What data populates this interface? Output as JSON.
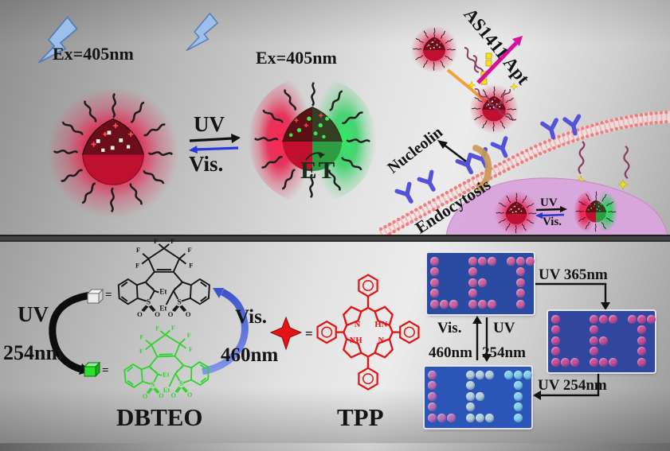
{
  "figure": {
    "top": {
      "ex_left": "Ex=405nm",
      "ex_mid": "Ex=405nm",
      "switch_uv": "UV",
      "switch_vis": "Vis.",
      "et": "ET",
      "aptamer": "AS1411 Apt",
      "nucleolin": "Nucleolin",
      "endocytosis": "Endocytosis",
      "cell_uv": "UV",
      "cell_vis": "Vis."
    },
    "bottom": {
      "uv": "UV",
      "uv_nm": "254nm",
      "vis": "Vis.",
      "vis_nm": "460nm",
      "dbteo": "DBTEO",
      "tpp": "TPP",
      "eq1": "=",
      "eq2": "=",
      "eq3": "="
    },
    "chem": {
      "F": "F",
      "S": "S",
      "O": "O",
      "Et": "Et",
      "N": "N",
      "HN": "HN",
      "NH": "NH"
    },
    "photos": {
      "to_right": "UV 365nm",
      "to_left": "UV 254nm",
      "cyc_vis": "Vis.",
      "cyc_vis_nm": "460nm",
      "cyc_uv": "UV",
      "cyc_uv_nm": "254nm",
      "word": "LET",
      "panels": [
        {
          "name": "initial",
          "bg": "#2b4aa2",
          "colors": {
            "L": "#d8639f",
            "E": "#d8639f",
            "T": "#d8639f"
          }
        },
        {
          "name": "after-uv-365",
          "bg": "#31479e",
          "colors": {
            "L": "#cf4f96",
            "E": "#cf4f96",
            "T": "#cf4f96"
          }
        },
        {
          "name": "after-uv-254",
          "bg": "#2c55b8",
          "colors": {
            "L": "#c273b4",
            "E": "#bad8e0",
            "T": "#84d8f2"
          }
        }
      ],
      "letter_patterns": {
        "L": [
          "100",
          "100",
          "100",
          "100",
          "111"
        ],
        "E": [
          "111",
          "100",
          "110",
          "100",
          "111"
        ],
        "T": [
          "111",
          "010",
          "010",
          "010",
          "010"
        ]
      }
    },
    "colors": {
      "red_glow": "#ea0e40",
      "green_glow": "#17cf4e",
      "membrane": "#ee7f7f",
      "receptor": "#5552da",
      "cell": "#d9a6dc",
      "magenta_arrow": "#d8109d",
      "orange_arrow": "#f0a335",
      "blue_arrow": "#5567d4",
      "tpp_red": "#e21212",
      "dbteo_green": "#2bd42b"
    }
  }
}
